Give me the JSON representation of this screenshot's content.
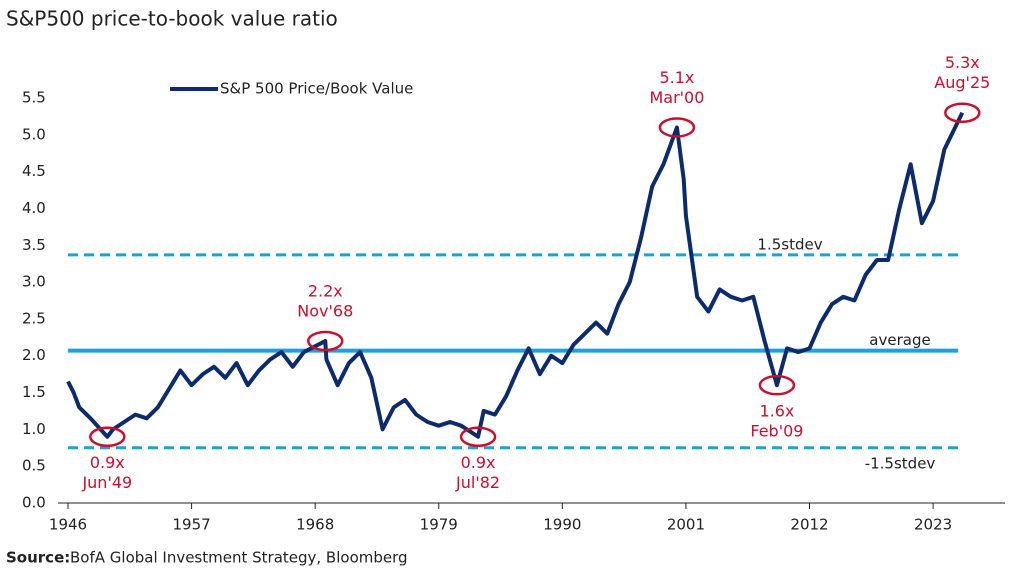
{
  "chart_data": {
    "type": "line",
    "title": "S&P500 price-to-book value ratio",
    "source_label": "Source:",
    "source": "BofA Global Investment Strategy, Bloomberg",
    "series": [
      {
        "name": "S&P 500 Price/Book Value",
        "color": "#0d2a6b",
        "x": [
          1946,
          1946.5,
          1947,
          1948,
          1949.5,
          1950,
          1951,
          1952,
          1953,
          1954,
          1955,
          1956,
          1957,
          1958,
          1959,
          1960,
          1961,
          1962,
          1963,
          1964,
          1965,
          1966,
          1967,
          1968.9,
          1969,
          1970,
          1971,
          1972,
          1973,
          1974,
          1975,
          1976,
          1977,
          1978,
          1979,
          1980,
          1981,
          1982.5,
          1983,
          1984,
          1985,
          1986,
          1987,
          1988,
          1989,
          1990,
          1991,
          1992,
          1993,
          1994,
          1995,
          1996,
          1997,
          1998,
          1999,
          2000.2,
          2000.8,
          2001,
          2002,
          2003,
          2004,
          2005,
          2006,
          2007,
          2008,
          2009.1,
          2010,
          2011,
          2012,
          2013,
          2014,
          2015,
          2016,
          2017,
          2018,
          2019,
          2020,
          2021,
          2022,
          2023,
          2024,
          2025.6
        ],
        "values": [
          1.65,
          1.5,
          1.3,
          1.15,
          0.9,
          1.0,
          1.1,
          1.2,
          1.15,
          1.3,
          1.55,
          1.8,
          1.6,
          1.75,
          1.85,
          1.7,
          1.9,
          1.6,
          1.8,
          1.95,
          2.05,
          1.85,
          2.05,
          2.2,
          1.95,
          1.6,
          1.9,
          2.05,
          1.7,
          1.0,
          1.3,
          1.4,
          1.2,
          1.1,
          1.05,
          1.1,
          1.05,
          0.9,
          1.25,
          1.2,
          1.45,
          1.8,
          2.1,
          1.75,
          2.0,
          1.9,
          2.15,
          2.3,
          2.45,
          2.3,
          2.7,
          3.0,
          3.6,
          4.3,
          4.6,
          5.1,
          4.4,
          3.9,
          2.8,
          2.6,
          2.9,
          2.8,
          2.75,
          2.8,
          2.2,
          1.6,
          2.1,
          2.05,
          2.1,
          2.45,
          2.7,
          2.8,
          2.75,
          3.1,
          3.3,
          3.3,
          4.0,
          4.6,
          3.8,
          4.1,
          4.8,
          5.3
        ]
      }
    ],
    "reference_lines": [
      {
        "label": "1.5stdev",
        "value": 3.37,
        "style": "dashed",
        "label_position": "above"
      },
      {
        "label": "average",
        "value": 2.07,
        "style": "solid",
        "label_position": "above"
      },
      {
        "label": "-1.5stdev",
        "value": 0.75,
        "style": "dashed",
        "label_position": "below"
      }
    ],
    "reference_color": "#1ba1dc",
    "annotations": [
      {
        "text": "0.9x",
        "date": "Jun'49",
        "x": 1949.5,
        "y": 0.9,
        "position": "below"
      },
      {
        "text": "2.2x",
        "date": "Nov'68",
        "x": 1968.9,
        "y": 2.2,
        "position": "above"
      },
      {
        "text": "0.9x",
        "date": "Jul'82",
        "x": 1982.5,
        "y": 0.9,
        "position": "below"
      },
      {
        "text": "5.1x",
        "date": "Mar'00",
        "x": 2000.2,
        "y": 5.1,
        "position": "above"
      },
      {
        "text": "1.6x",
        "date": "Feb'09",
        "x": 2009.1,
        "y": 1.6,
        "position": "below"
      },
      {
        "text": "5.3x",
        "date": "Aug'25",
        "x": 2025.6,
        "y": 5.3,
        "position": "above"
      }
    ],
    "annotation_color": "#c8102e",
    "xlim": [
      1946,
      2029.4
    ],
    "xticks": [
      1946,
      1957,
      1968,
      1979,
      1990,
      2001,
      2012,
      2023
    ],
    "ylim": [
      0,
      5.5
    ],
    "yticks": [
      {
        "value": 0,
        "label": "0.0"
      },
      0.5,
      {
        "value": 1,
        "label": "1.0"
      },
      1.5,
      {
        "value": 2,
        "label": "2.0"
      },
      2.5,
      {
        "value": 3,
        "label": "3.0"
      },
      3.5,
      {
        "value": 4,
        "label": "4.0"
      },
      4.5,
      {
        "value": 5,
        "label": "5.0"
      },
      5.5
    ]
  }
}
